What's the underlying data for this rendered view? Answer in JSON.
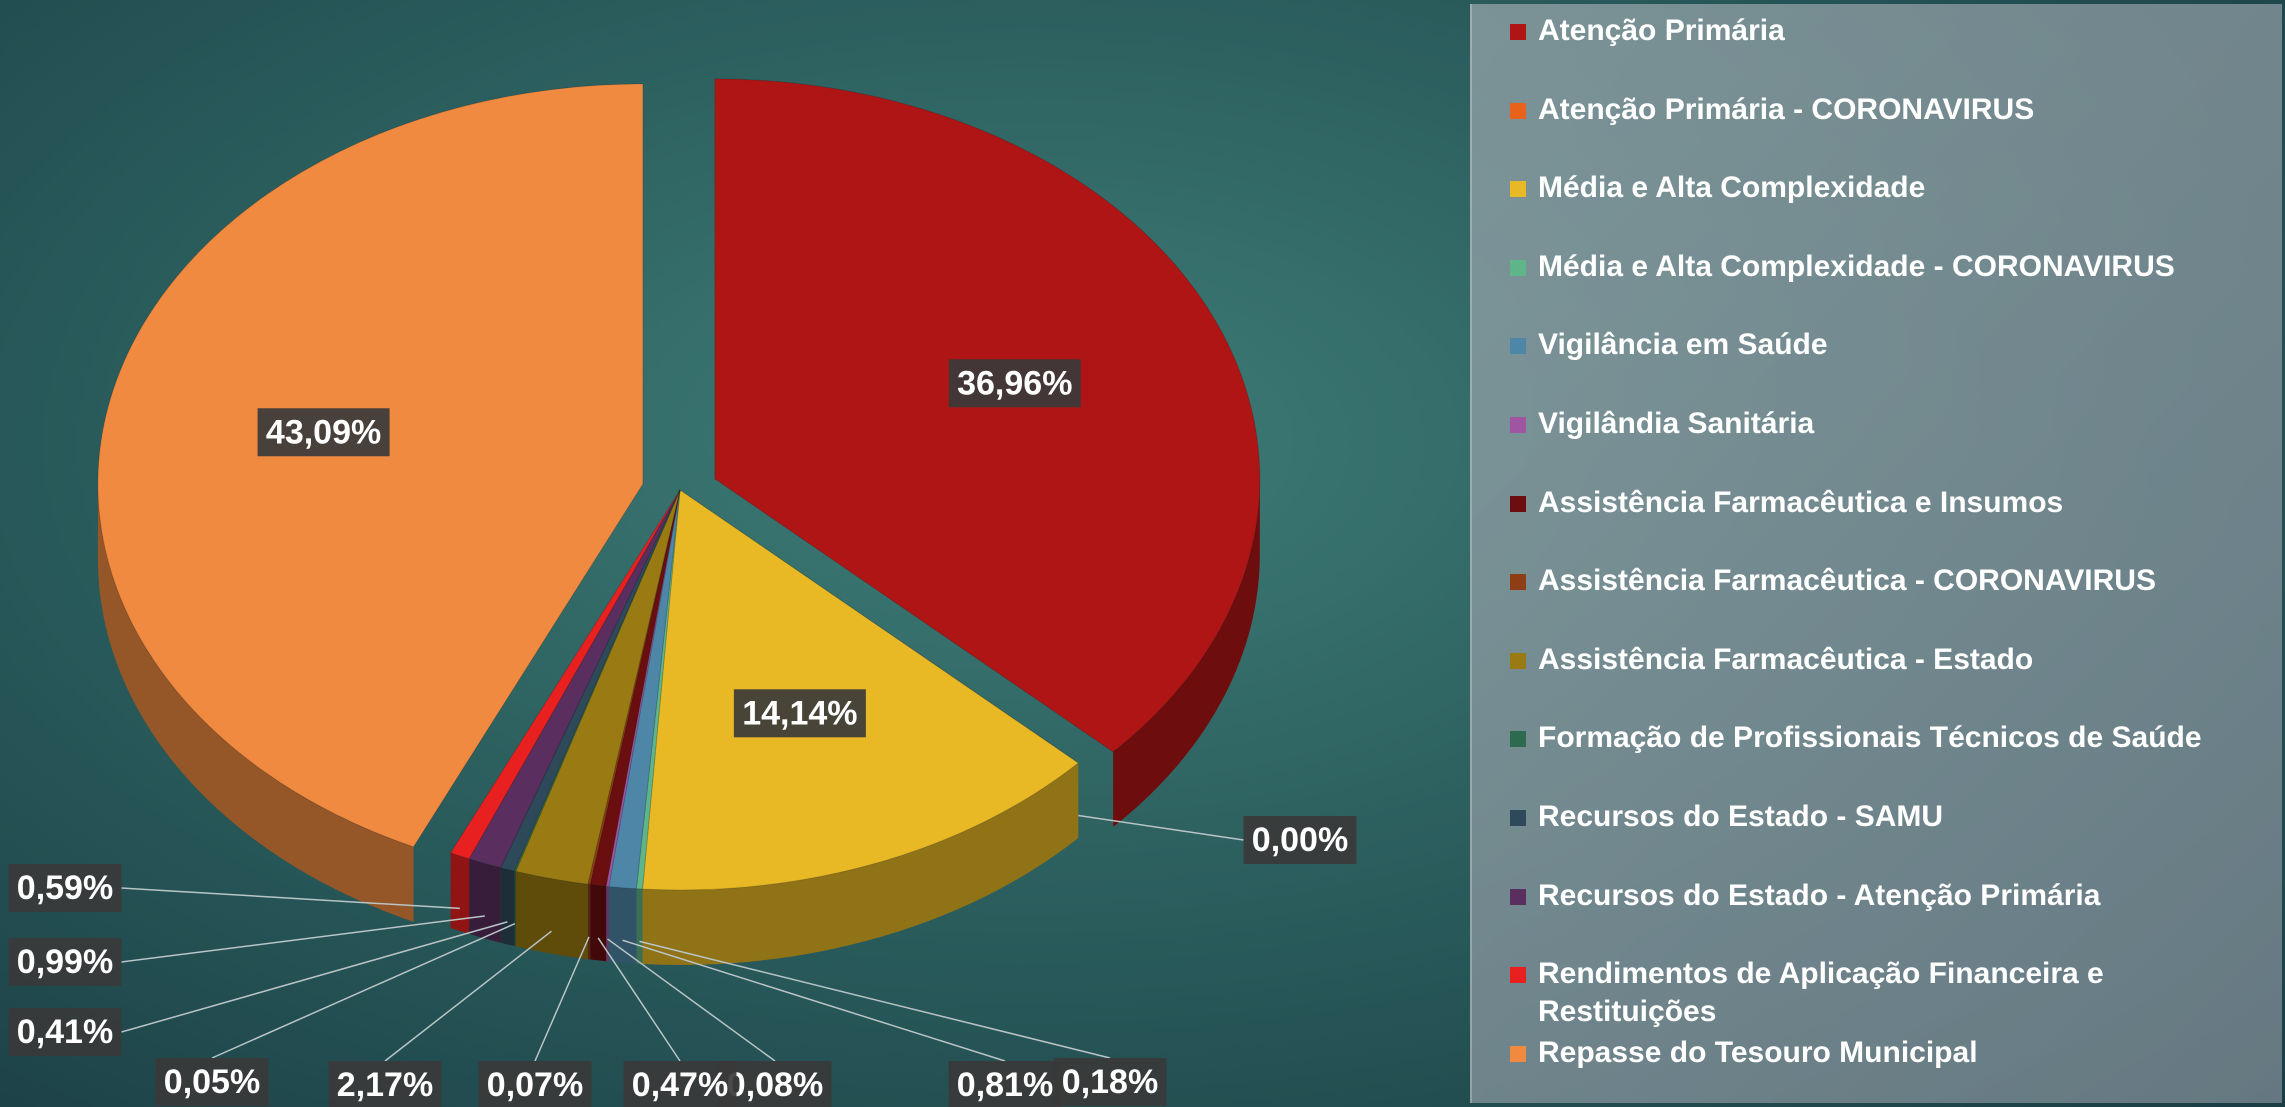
{
  "chart_data": {
    "type": "pie",
    "categories": [
      "Atenção Primária",
      "Atenção Primária - CORONAVIRUS",
      "Média e Alta Complexidade",
      "Média e Alta Complexidade - CORONAVIRUS",
      "Vigilância em Saúde",
      "Vigilândia Sanitária",
      "Assistência Farmacêutica e Insumos",
      "Assistência Farmacêutica - CORONAVIRUS",
      "Assistência Farmacêutica - Estado",
      "Formação de Profissionais Técnicos de Saúde",
      "Recursos do Estado - SAMU",
      "Recursos do Estado - Atenção Primária",
      "Rendimentos de Aplicação Financeira e Restituições",
      "Repasse do Tesouro Municipal"
    ],
    "values": [
      36.96,
      0.0,
      14.14,
      0.18,
      0.81,
      0.08,
      0.47,
      0.07,
      2.17,
      0.05,
      0.41,
      0.99,
      0.59,
      43.09
    ],
    "value_labels": [
      "36,96%",
      "0,00%",
      "14,14%",
      "0,18%",
      "0,81%",
      "0,08%",
      "0,47%",
      "0,07%",
      "2,17%",
      "0,05%",
      "0,41%",
      "0,99%",
      "0,59%",
      "43,09%"
    ],
    "colors": [
      "#b01515",
      "#e8621c",
      "#e8b825",
      "#5fb58a",
      "#4e86a8",
      "#a055a2",
      "#6b0e10",
      "#8e3e14",
      "#9a7a12",
      "#2e6a4e",
      "#2e4a5a",
      "#5a2e5e",
      "#e82020",
      "#f08a40"
    ]
  }
}
